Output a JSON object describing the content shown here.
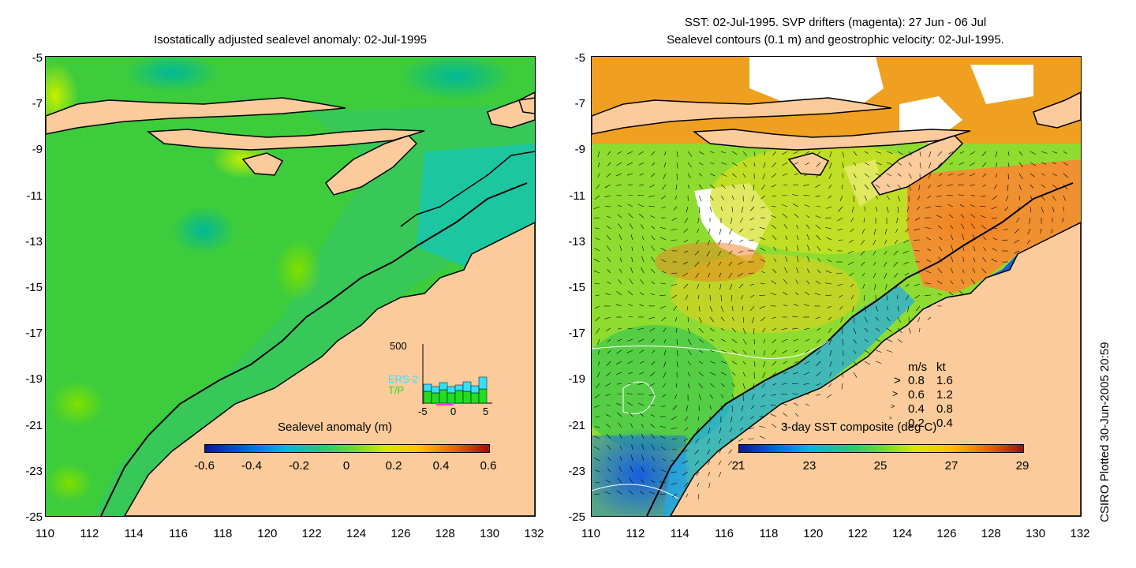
{
  "left_panel": {
    "title": "Isostatically adjusted sealevel anomaly: 02-Jul-1995",
    "colorbar": {
      "label": "Sealevel anomaly (m)",
      "ticks": [
        "-0.6",
        "-0.4",
        "-0.2",
        "0",
        "0.2",
        "0.4",
        "0.6"
      ]
    },
    "inset": {
      "ymax_label": "500",
      "legend": [
        "ERS-2",
        "T/P"
      ],
      "x_ticks": [
        "-5",
        "0",
        "5"
      ],
      "ers2_color": "#33e0ff",
      "tp_color": "#22dd22"
    }
  },
  "right_panel": {
    "title_line1": "SST: 02-Jul-1995. SVP drifters (magenta): 27 Jun - 06 Jul",
    "title_line2": "Sealevel contours (0.1 m) and geostrophic velocity: 02-Jul-1995.",
    "colorbar": {
      "label": "3-day SST composite (deg C)",
      "ticks": [
        "21",
        "23",
        "25",
        "27",
        "29"
      ]
    },
    "velocity_key": {
      "header_ms": "m/s",
      "header_kt": "kt",
      "rows": [
        {
          "ms": "0.8",
          "kt": "1.6"
        },
        {
          "ms": "0.6",
          "kt": "1.2"
        },
        {
          "ms": "0.4",
          "kt": "0.8"
        },
        {
          "ms": "0.2",
          "kt": "0.4"
        }
      ]
    }
  },
  "axes": {
    "y_ticks": [
      "-5",
      "-7",
      "-9",
      "-11",
      "-13",
      "-15",
      "-17",
      "-19",
      "-21",
      "-23",
      "-25"
    ],
    "x_ticks": [
      "110",
      "112",
      "114",
      "116",
      "118",
      "120",
      "122",
      "124",
      "126",
      "128",
      "130",
      "132"
    ]
  },
  "credit": "CSIRO Plotted 30-Jun-2005 20:59",
  "colors": {
    "land": "#fbcb9b",
    "ocean_green": "#33cc44",
    "shelf_teal": "#22c99a"
  }
}
